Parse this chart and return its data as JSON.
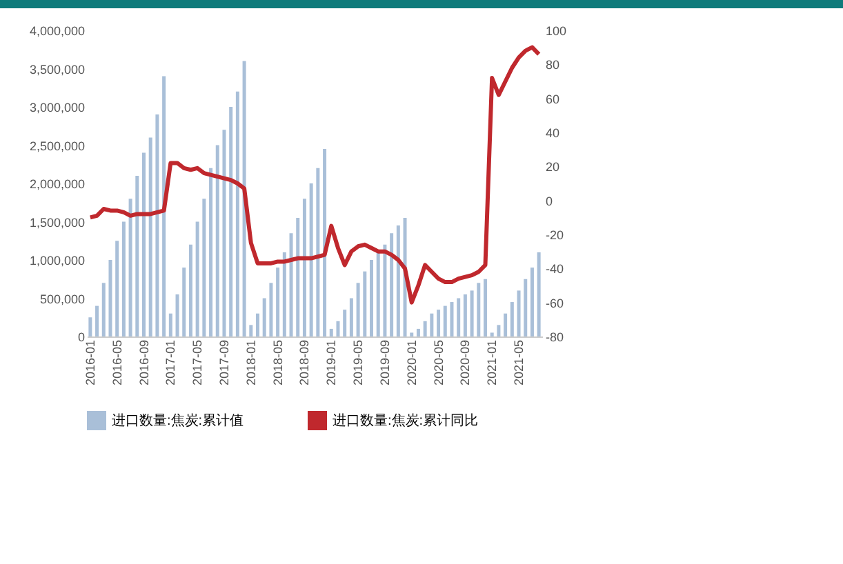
{
  "chart_data": {
    "type": "bar",
    "categories": [
      "2016-01",
      null,
      null,
      null,
      "2016-05",
      null,
      null,
      null,
      "2016-09",
      null,
      null,
      null,
      "2017-01",
      null,
      null,
      null,
      "2017-05",
      null,
      null,
      null,
      "2017-09",
      null,
      null,
      null,
      "2018-01",
      null,
      null,
      null,
      "2018-05",
      null,
      null,
      null,
      "2018-09",
      null,
      null,
      null,
      "2019-01",
      null,
      null,
      null,
      "2019-05",
      null,
      null,
      null,
      "2019-09",
      null,
      null,
      null,
      "2020-01",
      null,
      null,
      null,
      "2020-05",
      null,
      null,
      null,
      "2020-09",
      null,
      null,
      null,
      "2021-01",
      null,
      null,
      null,
      "2021-05",
      null,
      null,
      null
    ],
    "series": [
      {
        "name": "进口数量:焦炭:累计值",
        "color": "#a9bfd8",
        "values": [
          250000,
          400000,
          700000,
          1000000,
          1250000,
          1500000,
          1800000,
          2100000,
          2400000,
          2600000,
          2900000,
          3400000,
          300000,
          550000,
          900000,
          1200000,
          1500000,
          1800000,
          2200000,
          2500000,
          2700000,
          3000000,
          3200000,
          3600000,
          150000,
          300000,
          500000,
          700000,
          900000,
          1100000,
          1350000,
          1550000,
          1800000,
          2000000,
          2200000,
          2450000,
          100000,
          200000,
          350000,
          500000,
          700000,
          850000,
          1000000,
          1100000,
          1200000,
          1350000,
          1450000,
          1550000,
          50000,
          100000,
          200000,
          300000,
          350000,
          400000,
          450000,
          500000,
          550000,
          600000,
          700000,
          750000,
          50000,
          150000,
          300000,
          450000,
          600000,
          750000,
          900000,
          1100000
        ]
      },
      {
        "name": "进口数量:焦炭:累计同比",
        "type": "line",
        "axis": "y2",
        "color": "#c0282d",
        "values": [
          -10,
          -9,
          -5,
          -6,
          -6,
          -7,
          -9,
          -8,
          -8,
          -8,
          -7,
          -6,
          22,
          22,
          19,
          18,
          19,
          16,
          15,
          14,
          13,
          12,
          10,
          7,
          -25,
          -37,
          -37,
          -37,
          -36,
          -36,
          -35,
          -34,
          -34,
          -34,
          -33,
          -32,
          -15,
          -28,
          -38,
          -30,
          -27,
          -26,
          -28,
          -30,
          -30,
          -32,
          -35,
          -40,
          -60,
          -50,
          -38,
          -42,
          -46,
          -48,
          -48,
          -46,
          -45,
          -44,
          -42,
          -38,
          72,
          62,
          70,
          78,
          84,
          88,
          90,
          86
        ]
      }
    ],
    "ylim": [
      0,
      4000000
    ],
    "yticks": [
      0,
      {
        "value": 500000,
        "label": "500,000"
      },
      {
        "value": 1000000,
        "label": "1,000,000"
      },
      {
        "value": 1500000,
        "label": "1,500,000"
      },
      {
        "value": 2000000,
        "label": "2,000,000"
      },
      {
        "value": 2500000,
        "label": "2,500,000"
      },
      {
        "value": 3000000,
        "label": "3,000,000"
      },
      {
        "value": 3500000,
        "label": "3,500,000"
      },
      {
        "value": 4000000,
        "label": "4,000,000"
      }
    ],
    "y2lim": [
      -80,
      100
    ],
    "y2ticks": [
      -80,
      -60,
      -40,
      -20,
      0,
      20,
      40,
      60,
      80,
      100
    ],
    "legend": "bottom",
    "grid": false
  }
}
